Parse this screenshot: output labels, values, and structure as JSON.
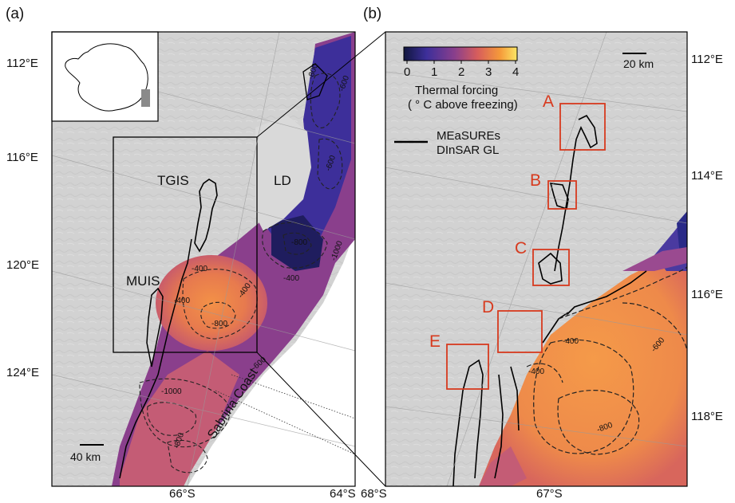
{
  "panels": {
    "a": {
      "label": "(a)"
    },
    "b": {
      "label": "(b)"
    }
  },
  "panel_a": {
    "lon_labels": [
      "112°E",
      "116°E",
      "120°E",
      "124°E"
    ],
    "lat_labels": [
      "66°S",
      "64°S"
    ],
    "region_labels": {
      "tgis": "TGIS",
      "ld": "LD",
      "muis": "MUIS"
    },
    "coast_label": "Sabrina Coast",
    "scale_bar": "40 km",
    "contour_labels": [
      "-600",
      "-800",
      "-600",
      "-1000",
      "-400",
      "-400",
      "-800",
      "-400",
      "-800",
      "-1000",
      "-400",
      "-600",
      "-800"
    ]
  },
  "panel_b": {
    "lon_labels": [
      "112°E",
      "114°E",
      "116°E",
      "118°E"
    ],
    "lat_labels": [
      "68°S",
      "67°S"
    ],
    "scale_bar": "20 km",
    "box_letters": [
      "A",
      "B",
      "C",
      "D",
      "E"
    ],
    "contour_labels": [
      "-400",
      "-400",
      "-600",
      "-800"
    ]
  },
  "colorbar": {
    "ticks": [
      "0",
      "1",
      "2",
      "3",
      "4"
    ],
    "range": [
      0,
      4
    ],
    "title_line1": "Thermal forcing",
    "title_line2": "( ° C above freezing)",
    "colors": [
      "#10163e",
      "#3d2f9a",
      "#8a3f8c",
      "#d75d5c",
      "#f59a3a",
      "#fbe766"
    ]
  },
  "legend": {
    "line1": "MEaSUREs",
    "line2": "DInSAR GL"
  },
  "colors": {
    "box_red": "#d73a1e",
    "grounding_line": "#000000"
  }
}
